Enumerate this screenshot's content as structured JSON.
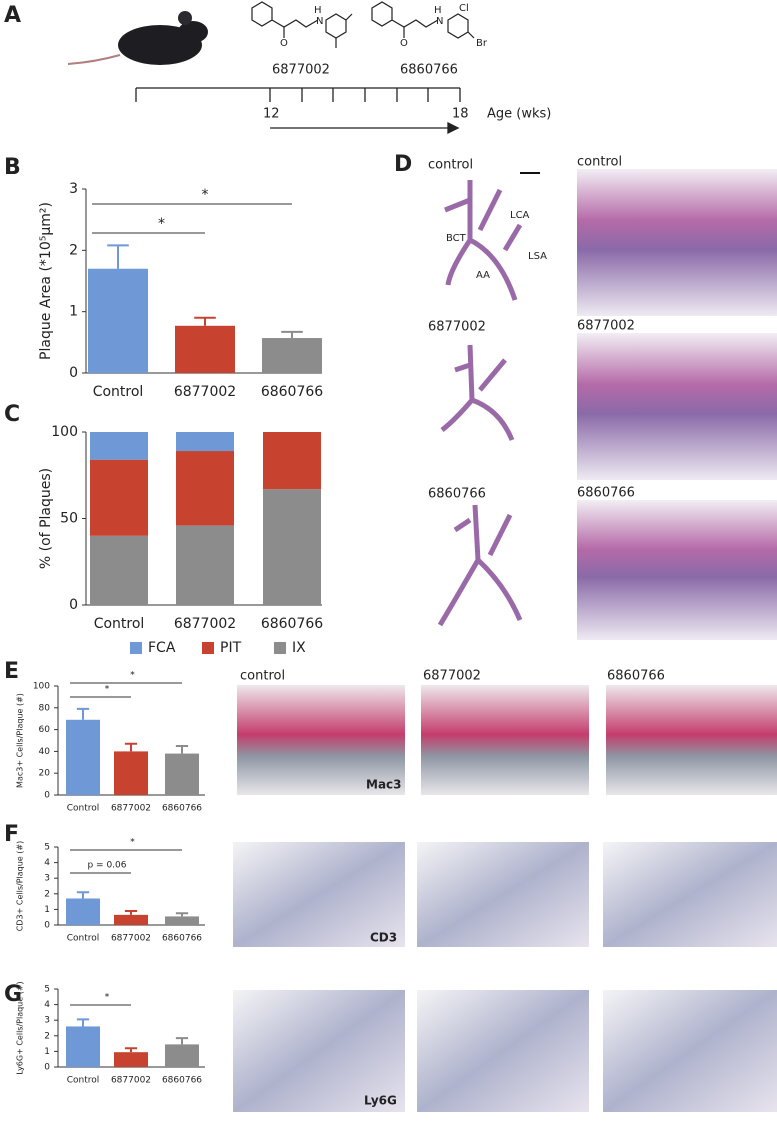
{
  "panel_letters": [
    "A",
    "B",
    "C",
    "D",
    "E",
    "F",
    "G"
  ],
  "timeline": {
    "compounds": [
      "6877002",
      "6860766"
    ],
    "start": "12",
    "end": "18",
    "axis_label": "Age (wks)",
    "structure_1_atoms": [
      "O",
      "H",
      "N"
    ],
    "structure_2_atoms": [
      "O",
      "H",
      "N",
      "Cl",
      "Br"
    ]
  },
  "histology_d": {
    "left_labels": [
      "control",
      "6877002",
      "6860766"
    ],
    "right_labels": [
      "control",
      "6877002",
      "6860766"
    ],
    "vessel_labels": [
      "LCA",
      "BCT",
      "LSA",
      "AA"
    ]
  },
  "histology_efg": {
    "columns": [
      "control",
      "6877002",
      "6860766"
    ],
    "stains": [
      "Mac3",
      "CD3",
      "Ly6G"
    ]
  },
  "chart_data": [
    {
      "type": "bar",
      "categories": [
        "Control",
        "6877002",
        "6860766"
      ],
      "values": [
        1.7,
        0.77,
        0.57
      ],
      "errors": [
        0.38,
        0.13,
        0.1
      ],
      "colors": [
        "#6f98d6",
        "#c8432f",
        "#8c8c8c"
      ],
      "y_label": "Plaque Area (*10⁵µm²)",
      "ylim": [
        0,
        3
      ],
      "yticks": [
        0,
        1,
        2,
        3
      ],
      "annotations": [
        {
          "text": "*",
          "between": [
            "Control",
            "6877002"
          ]
        },
        {
          "text": "*",
          "between": [
            "Control",
            "6860766"
          ]
        }
      ]
    },
    {
      "type": "stacked-bar",
      "categories": [
        "Control",
        "6877002",
        "6860766"
      ],
      "y_label": "% (of Plaques)",
      "ylim": [
        0,
        100
      ],
      "yticks": [
        0,
        50,
        100
      ],
      "series": [
        {
          "name": "FCA",
          "color": "#6f98d6",
          "values": [
            16,
            11,
            0
          ]
        },
        {
          "name": "PIT",
          "color": "#c8432f",
          "values": [
            44,
            43,
            33
          ]
        },
        {
          "name": "IX",
          "color": "#8c8c8c",
          "values": [
            40,
            46,
            67
          ]
        }
      ]
    },
    {
      "type": "bar",
      "categories": [
        "Control",
        "6877002",
        "6860766"
      ],
      "values": [
        69,
        40,
        38
      ],
      "errors": [
        10,
        7,
        7
      ],
      "colors": [
        "#6f98d6",
        "#c8432f",
        "#8c8c8c"
      ],
      "y_label": "Mac3+ Cells/Plaque (#)",
      "ylim": [
        0,
        100
      ],
      "yticks": [
        0,
        20,
        40,
        60,
        80,
        100
      ],
      "annotations": [
        {
          "text": "*",
          "between": [
            "Control",
            "6877002"
          ]
        },
        {
          "text": "*",
          "between": [
            "Control",
            "6860766"
          ]
        }
      ]
    },
    {
      "type": "bar",
      "categories": [
        "Control",
        "6877002",
        "6860766"
      ],
      "values": [
        1.7,
        0.65,
        0.55
      ],
      "errors": [
        0.4,
        0.25,
        0.2
      ],
      "colors": [
        "#6f98d6",
        "#c8432f",
        "#8c8c8c"
      ],
      "y_label": "CD3+ Cells/Plaque (#)",
      "ylim": [
        0,
        5
      ],
      "yticks": [
        0,
        1,
        2,
        3,
        4,
        5
      ],
      "annotations": [
        {
          "text": "p = 0.06",
          "between": [
            "Control",
            "6877002"
          ]
        },
        {
          "text": "*",
          "between": [
            "Control",
            "6860766"
          ]
        }
      ]
    },
    {
      "type": "bar",
      "categories": [
        "Control",
        "6877002",
        "6860766"
      ],
      "values": [
        2.6,
        0.95,
        1.45
      ],
      "errors": [
        0.45,
        0.25,
        0.4
      ],
      "colors": [
        "#6f98d6",
        "#c8432f",
        "#8c8c8c"
      ],
      "y_label": "Ly6G+ Cells/Plaque (#)",
      "ylim": [
        0,
        5
      ],
      "yticks": [
        0,
        1,
        2,
        3,
        4,
        5
      ],
      "annotations": [
        {
          "text": "*",
          "between": [
            "Control",
            "6877002"
          ]
        }
      ]
    }
  ]
}
